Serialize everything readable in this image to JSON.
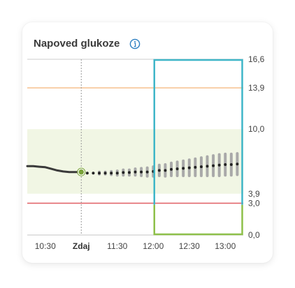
{
  "card": {
    "title": "Napoved glukoze",
    "info_icon": "info-circle-icon"
  },
  "colors": {
    "target_range_band": "#f1f6e4",
    "high_threshold": "#f6c08e",
    "low_threshold": "#e2676c",
    "history_line": "#3a3a3a",
    "forecast_dot": "#222222",
    "forecast_spread": "#a9a9a9",
    "now_marker": "#7aa33a",
    "highlight_top": "#3fb6c8",
    "highlight_bottom": "#8ec04a"
  },
  "chart_data": {
    "type": "line",
    "x_tick_labels": [
      "10:30",
      "Zdaj",
      "11:30",
      "12:00",
      "12:30",
      "13:00"
    ],
    "x_range": [
      "10:15",
      "13:15"
    ],
    "now": "11:00",
    "y_tick_labels": [
      "16,6",
      "13,9",
      "10,0",
      "3,9",
      "3,0",
      "0,0"
    ],
    "ylim": [
      0,
      16.6
    ],
    "target_range": [
      3.9,
      10.0
    ],
    "high_threshold": 13.9,
    "low_threshold": 3.0,
    "series": [
      {
        "kind": "history",
        "points": [
          [
            "10:15",
            6.5
          ],
          [
            "10:20",
            6.5
          ],
          [
            "10:25",
            6.45
          ],
          [
            "10:30",
            6.4
          ],
          [
            "10:35",
            6.25
          ],
          [
            "10:40",
            6.1
          ],
          [
            "10:45",
            6.0
          ],
          [
            "10:50",
            5.95
          ],
          [
            "10:55",
            5.95
          ],
          [
            "11:00",
            5.95
          ]
        ]
      },
      {
        "kind": "forecast",
        "points": [
          [
            "11:05",
            5.85,
            0.0
          ],
          [
            "11:10",
            5.85,
            0.0
          ],
          [
            "11:15",
            5.85,
            0.1
          ],
          [
            "11:20",
            5.85,
            0.1
          ],
          [
            "11:25",
            5.85,
            0.15
          ],
          [
            "11:30",
            5.85,
            0.2
          ],
          [
            "11:35",
            5.9,
            0.25
          ],
          [
            "11:40",
            5.9,
            0.25
          ],
          [
            "11:45",
            5.95,
            0.3
          ],
          [
            "11:50",
            5.95,
            0.35
          ],
          [
            "11:55",
            5.95,
            0.4
          ],
          [
            "12:00",
            6.0,
            0.45
          ],
          [
            "12:05",
            6.1,
            0.5
          ],
          [
            "12:10",
            6.1,
            0.55
          ],
          [
            "12:15",
            6.2,
            0.6
          ],
          [
            "12:20",
            6.25,
            0.65
          ],
          [
            "12:25",
            6.3,
            0.7
          ],
          [
            "12:30",
            6.35,
            0.75
          ],
          [
            "12:35",
            6.4,
            0.8
          ],
          [
            "12:40",
            6.45,
            0.85
          ],
          [
            "12:45",
            6.5,
            0.9
          ],
          [
            "12:50",
            6.55,
            0.95
          ],
          [
            "12:55",
            6.6,
            1.0
          ],
          [
            "13:00",
            6.65,
            1.0
          ],
          [
            "13:05",
            6.65,
            1.0
          ],
          [
            "13:10",
            6.7,
            1.0
          ]
        ]
      }
    ],
    "highlight_window": [
      "12:00",
      "13:15"
    ]
  }
}
